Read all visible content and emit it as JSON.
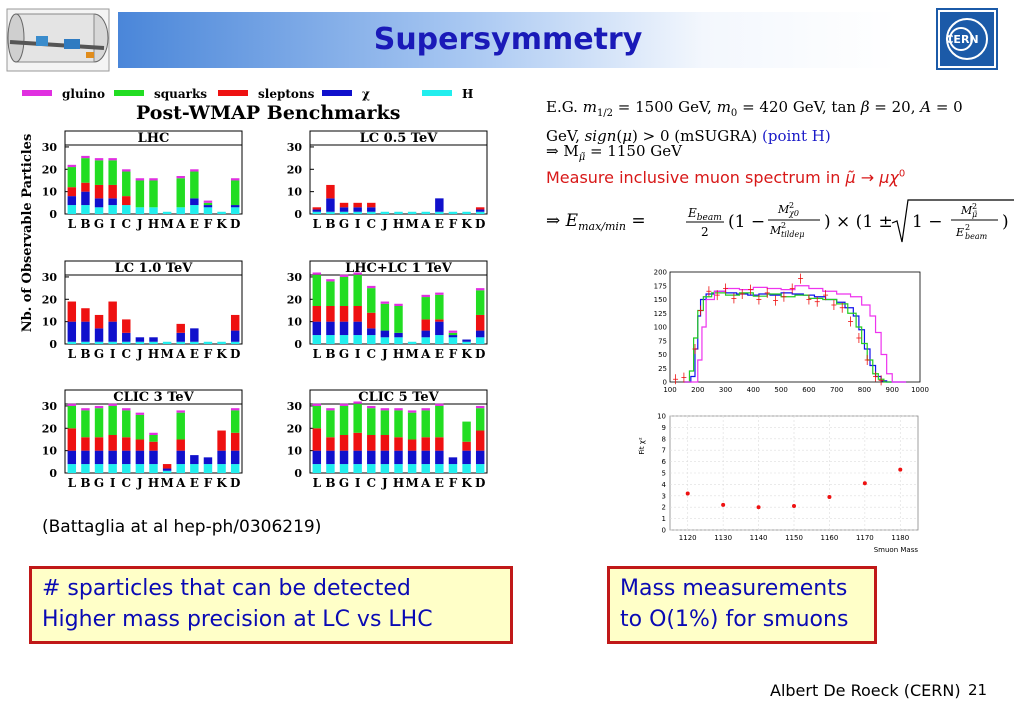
{
  "title": "Supersymmetry",
  "icons": {
    "left_logo": "detector-illustration",
    "right_logo": "cern-logo"
  },
  "legend": [
    {
      "label": "gluino",
      "color": "#e030e0"
    },
    {
      "label": "squarks",
      "color": "#22dd22"
    },
    {
      "label": "sleptons",
      "color": "#ee1111"
    },
    {
      "label": "χ",
      "color": "#1010cc"
    },
    {
      "label": "H",
      "color": "#22eeee"
    }
  ],
  "bench_title": "Post-WMAP Benchmarks",
  "y_axis_label": "Nb. of Observable Particles",
  "citation": "(Battaglia at al hep-ph/0306219)",
  "box_left": {
    "line1": "# sparticles that can be detected",
    "line2": "Higher mass precision at LC vs LHC"
  },
  "box_right": {
    "line1": "Mass measurements",
    "line2": "to O(1%) for smuons"
  },
  "equations": {
    "eg_prefix": "E.G. ",
    "line1_mid": " GeV, ",
    "line1_gev": " GeV, ",
    "line2_prefix": "GeV, ",
    "msugra": "(mSUGRA)",
    "point": "(point H)",
    "mass_result": "⇒ M",
    "mass_value": " = 1150 GeV",
    "measure": "Measure inclusive muon spectrum in"
  },
  "footer": "Albert De Roeck (CERN)",
  "page_number": "21",
  "chart_data": [
    {
      "type": "bar",
      "title": "LHC",
      "categories": [
        "L",
        "B",
        "G",
        "I",
        "C",
        "J",
        "H",
        "M",
        "A",
        "E",
        "F",
        "K",
        "D"
      ],
      "ylim": [
        0,
        34
      ],
      "yticks": [
        0,
        10,
        20,
        30
      ],
      "stacked_order": [
        "H",
        "χ",
        "sleptons",
        "squarks",
        "gluino"
      ],
      "series": [
        {
          "name": "H",
          "values": [
            4,
            4,
            3,
            4,
            4,
            3,
            3,
            1,
            3,
            4,
            3,
            1,
            3
          ]
        },
        {
          "name": "χ",
          "values": [
            4,
            6,
            4,
            3,
            0,
            0,
            0,
            0,
            0,
            3,
            1,
            0,
            1
          ]
        },
        {
          "name": "sleptons",
          "values": [
            4,
            4,
            6,
            6,
            4,
            0,
            0,
            0,
            0,
            0,
            0,
            0,
            0
          ]
        },
        {
          "name": "squarks",
          "values": [
            9,
            11,
            11,
            11,
            11,
            12,
            12,
            0,
            13,
            12,
            1,
            0,
            11
          ]
        },
        {
          "name": "gluino",
          "values": [
            1,
            1,
            1,
            1,
            1,
            1,
            1,
            0,
            1,
            1,
            1,
            0,
            1
          ]
        }
      ]
    },
    {
      "type": "bar",
      "title": "LC 0.5 TeV",
      "categories": [
        "L",
        "B",
        "G",
        "I",
        "C",
        "J",
        "H",
        "M",
        "A",
        "E",
        "F",
        "K",
        "D"
      ],
      "ylim": [
        0,
        34
      ],
      "yticks": [
        0,
        10,
        20,
        30
      ],
      "stacked_order": [
        "H",
        "χ",
        "sleptons",
        "squarks",
        "gluino"
      ],
      "series": [
        {
          "name": "H",
          "values": [
            1,
            1,
            1,
            1,
            1,
            1,
            1,
            1,
            1,
            1,
            1,
            1,
            1
          ]
        },
        {
          "name": "χ",
          "values": [
            1,
            6,
            2,
            2,
            2,
            0,
            0,
            0,
            0,
            6,
            0,
            0,
            1
          ]
        },
        {
          "name": "sleptons",
          "values": [
            1,
            6,
            2,
            2,
            2,
            0,
            0,
            0,
            0,
            0,
            0,
            0,
            1
          ]
        },
        {
          "name": "squarks",
          "values": [
            0,
            0,
            0,
            0,
            0,
            0,
            0,
            0,
            0,
            0,
            0,
            0,
            0
          ]
        },
        {
          "name": "gluino",
          "values": [
            0,
            0,
            0,
            0,
            0,
            0,
            0,
            0,
            0,
            0,
            0,
            0,
            0
          ]
        }
      ]
    },
    {
      "type": "bar",
      "title": "LC 1.0 TeV",
      "categories": [
        "L",
        "B",
        "G",
        "I",
        "C",
        "J",
        "H",
        "M",
        "A",
        "E",
        "F",
        "K",
        "D"
      ],
      "ylim": [
        0,
        34
      ],
      "yticks": [
        0,
        10,
        20,
        30
      ],
      "stacked_order": [
        "H",
        "χ",
        "sleptons",
        "squarks",
        "gluino"
      ],
      "series": [
        {
          "name": "H",
          "values": [
            1,
            1,
            1,
            1,
            1,
            1,
            1,
            1,
            1,
            1,
            1,
            1,
            1
          ]
        },
        {
          "name": "χ",
          "values": [
            9,
            9,
            6,
            9,
            4,
            2,
            2,
            0,
            4,
            6,
            0,
            0,
            5
          ]
        },
        {
          "name": "sleptons",
          "values": [
            9,
            6,
            6,
            9,
            6,
            0,
            0,
            0,
            4,
            0,
            0,
            0,
            7
          ]
        },
        {
          "name": "squarks",
          "values": [
            0,
            0,
            0,
            0,
            0,
            0,
            0,
            0,
            0,
            0,
            0,
            0,
            0
          ]
        },
        {
          "name": "gluino",
          "values": [
            0,
            0,
            0,
            0,
            0,
            0,
            0,
            0,
            0,
            0,
            0,
            0,
            0
          ]
        }
      ]
    },
    {
      "type": "bar",
      "title": "LHC+LC 1 TeV",
      "categories": [
        "L",
        "B",
        "G",
        "I",
        "C",
        "J",
        "H",
        "M",
        "A",
        "E",
        "F",
        "K",
        "D"
      ],
      "ylim": [
        0,
        34
      ],
      "yticks": [
        0,
        10,
        20,
        30
      ],
      "stacked_order": [
        "H",
        "χ",
        "sleptons",
        "squarks",
        "gluino"
      ],
      "series": [
        {
          "name": "H",
          "values": [
            4,
            4,
            4,
            4,
            4,
            3,
            3,
            1,
            3,
            4,
            3,
            1,
            3
          ]
        },
        {
          "name": "χ",
          "values": [
            6,
            6,
            6,
            6,
            3,
            3,
            2,
            0,
            3,
            6,
            1,
            1,
            3
          ]
        },
        {
          "name": "sleptons",
          "values": [
            7,
            7,
            7,
            7,
            7,
            0,
            0,
            0,
            5,
            1,
            0,
            0,
            7
          ]
        },
        {
          "name": "squarks",
          "values": [
            14,
            11,
            13,
            14,
            11,
            12,
            12,
            0,
            10,
            11,
            1,
            0,
            11
          ]
        },
        {
          "name": "gluino",
          "values": [
            1,
            1,
            1,
            1,
            1,
            1,
            1,
            0,
            1,
            1,
            1,
            0,
            1
          ]
        }
      ]
    },
    {
      "type": "bar",
      "title": "CLIC 3 TeV",
      "categories": [
        "L",
        "B",
        "G",
        "I",
        "C",
        "J",
        "H",
        "M",
        "A",
        "E",
        "F",
        "K",
        "D"
      ],
      "ylim": [
        0,
        34
      ],
      "yticks": [
        0,
        10,
        20,
        30
      ],
      "stacked_order": [
        "H",
        "χ",
        "sleptons",
        "squarks",
        "gluino"
      ],
      "series": [
        {
          "name": "H",
          "values": [
            4,
            4,
            4,
            4,
            4,
            4,
            4,
            1,
            4,
            4,
            4,
            4,
            4
          ]
        },
        {
          "name": "χ",
          "values": [
            6,
            6,
            6,
            6,
            6,
            6,
            6,
            1,
            6,
            4,
            3,
            6,
            6
          ]
        },
        {
          "name": "sleptons",
          "values": [
            10,
            6,
            6,
            7,
            6,
            5,
            4,
            2,
            5,
            0,
            0,
            9,
            8
          ]
        },
        {
          "name": "squarks",
          "values": [
            10,
            12,
            13,
            13,
            12,
            11,
            3,
            0,
            12,
            0,
            0,
            0,
            10
          ]
        },
        {
          "name": "gluino",
          "values": [
            1,
            1,
            1,
            1,
            1,
            1,
            1,
            0,
            1,
            0,
            0,
            0,
            1
          ]
        }
      ]
    },
    {
      "type": "bar",
      "title": "CLIC 5 TeV",
      "categories": [
        "L",
        "B",
        "G",
        "I",
        "C",
        "J",
        "H",
        "M",
        "A",
        "E",
        "F",
        "K",
        "D"
      ],
      "ylim": [
        0,
        34
      ],
      "yticks": [
        0,
        10,
        20,
        30
      ],
      "stacked_order": [
        "H",
        "χ",
        "sleptons",
        "squarks",
        "gluino"
      ],
      "series": [
        {
          "name": "H",
          "values": [
            4,
            4,
            4,
            4,
            4,
            4,
            4,
            4,
            4,
            4,
            4,
            4,
            4
          ]
        },
        {
          "name": "χ",
          "values": [
            6,
            6,
            6,
            6,
            6,
            6,
            6,
            6,
            6,
            6,
            3,
            6,
            6
          ]
        },
        {
          "name": "sleptons",
          "values": [
            10,
            6,
            7,
            8,
            7,
            7,
            6,
            5,
            6,
            6,
            0,
            4,
            9
          ]
        },
        {
          "name": "squarks",
          "values": [
            10,
            12,
            13,
            13,
            12,
            11,
            12,
            12,
            12,
            14,
            0,
            9,
            10
          ]
        },
        {
          "name": "gluino",
          "values": [
            1,
            1,
            1,
            1,
            1,
            1,
            1,
            1,
            1,
            1,
            0,
            0,
            1
          ]
        }
      ]
    },
    {
      "type": "line",
      "title": "",
      "xlim": [
        100,
        1000
      ],
      "ylim": [
        0,
        200
      ],
      "xticks": [
        100,
        200,
        300,
        400,
        500,
        600,
        700,
        800,
        900,
        1000
      ],
      "yticks": [
        0,
        25,
        50,
        75,
        100,
        125,
        150,
        175,
        200
      ],
      "series": [
        {
          "name": "",
          "color": "#1010ee",
          "x": [
            150,
            175,
            190,
            200,
            210,
            230,
            260,
            300,
            340,
            380,
            420,
            460,
            500,
            540,
            580,
            620,
            660,
            700,
            730,
            760,
            780,
            800,
            820,
            840,
            860,
            880,
            900,
            950
          ],
          "y": [
            0,
            10,
            60,
            120,
            150,
            160,
            165,
            162,
            160,
            158,
            160,
            158,
            162,
            160,
            158,
            155,
            150,
            145,
            135,
            120,
            95,
            60,
            30,
            10,
            2,
            0,
            0,
            0
          ]
        },
        {
          "name": "",
          "color": "#22cc22",
          "x": [
            150,
            170,
            185,
            200,
            220,
            250,
            300,
            350,
            400,
            450,
            500,
            550,
            600,
            650,
            700,
            740,
            770,
            790,
            810,
            830,
            850,
            870,
            900
          ],
          "y": [
            0,
            20,
            80,
            130,
            155,
            162,
            158,
            162,
            156,
            160,
            155,
            158,
            152,
            150,
            142,
            125,
            100,
            70,
            40,
            15,
            5,
            0,
            0
          ]
        },
        {
          "name": "",
          "color": "#ee33ee",
          "x": [
            150,
            180,
            200,
            215,
            230,
            260,
            300,
            350,
            400,
            450,
            500,
            550,
            600,
            650,
            700,
            750,
            790,
            820,
            840,
            860,
            880,
            900,
            950
          ],
          "y": [
            0,
            0,
            40,
            100,
            150,
            165,
            170,
            168,
            172,
            170,
            168,
            175,
            170,
            165,
            160,
            155,
            140,
            120,
            90,
            50,
            15,
            0,
            0
          ]
        }
      ],
      "error_points": {
        "color": "#ee1111",
        "x": [
          120,
          150,
          190,
          210,
          240,
          270,
          300,
          330,
          360,
          390,
          420,
          450,
          480,
          510,
          540,
          570,
          600,
          630,
          660,
          690,
          720,
          750,
          780,
          810,
          840,
          860
        ],
        "y": [
          5,
          8,
          60,
          130,
          165,
          158,
          170,
          152,
          160,
          168,
          150,
          162,
          148,
          155,
          170,
          188,
          150,
          146,
          158,
          140,
          135,
          110,
          80,
          40,
          10,
          3
        ]
      }
    },
    {
      "type": "scatter",
      "title": "",
      "xlabel": "Smuon Mass",
      "ylabel": "Fit χ²",
      "xlim": [
        1115,
        1185
      ],
      "ylim": [
        0,
        10
      ],
      "xticks": [
        1120,
        1130,
        1140,
        1150,
        1160,
        1170,
        1180
      ],
      "yticks": [
        0,
        1,
        2,
        3,
        4,
        5,
        6,
        7,
        8,
        9,
        10
      ],
      "grid": true,
      "color": "#ee1111",
      "x": [
        1120,
        1130,
        1140,
        1150,
        1160,
        1170,
        1180
      ],
      "y": [
        3.2,
        2.2,
        2.0,
        2.1,
        2.9,
        4.1,
        5.3
      ]
    }
  ]
}
